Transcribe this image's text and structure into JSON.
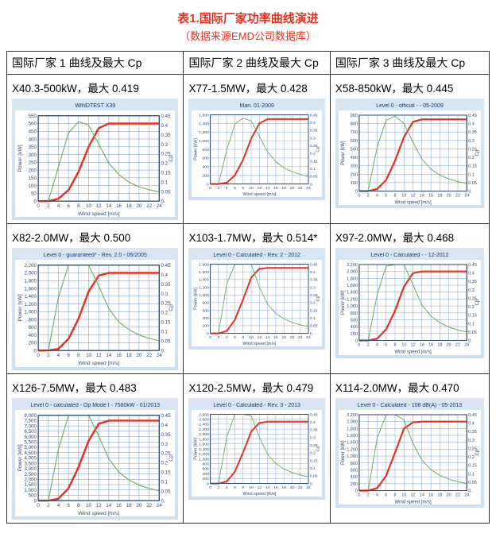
{
  "title": "表1.国际厂家功率曲线演进",
  "subtitle": "（数据来源EMD公司数据库）",
  "headers": [
    "国际厂家 1 曲线及最大 Cp",
    "国际厂家 2 曲线及最大 Cp",
    "国际厂家 3 曲线及最大 Cp"
  ],
  "shared": {
    "x": [
      0,
      2,
      4,
      6,
      8,
      10,
      12,
      14,
      16,
      18,
      20,
      22,
      24
    ],
    "xlabel": "Wind speed [m/s]",
    "ylabel": "Power [kW]",
    "y2ticks": [
      0,
      0.05,
      0.1,
      0.15,
      0.2,
      0.25,
      0.3,
      0.35,
      0.4,
      0.45
    ],
    "y2max": 0.45,
    "y2label": "Cp",
    "bg_plot": "#ffffff",
    "bg_panel_top": "#d9e6f2",
    "bg_panel_bot": "#cddff0",
    "grid_color": "#5b8abf",
    "power_color": "#e8301f",
    "cp_color": "#6fae5a",
    "text_color": "#2a4a7a",
    "title_fontsize": 7,
    "tick_fontsize": 5.5,
    "label_fontsize": 6,
    "power_linewidth": 2.2,
    "cp_linewidth": 1.0
  },
  "cells": [
    {
      "label": "X40.3-500kW，最大 0.419",
      "chart_title": "WINDTEST X39",
      "ymax": 550,
      "yticks": [
        0,
        50,
        100,
        150,
        200,
        250,
        300,
        350,
        400,
        450,
        500,
        550
      ],
      "power_y": [
        0,
        0,
        15,
        70,
        190,
        350,
        470,
        500,
        500,
        500,
        500,
        500,
        500
      ],
      "cp_y": [
        0,
        0,
        0.18,
        0.36,
        0.419,
        0.4,
        0.3,
        0.2,
        0.14,
        0.1,
        0.075,
        0.06,
        0.048
      ]
    },
    {
      "label": "X77-1.5MW，最大 0.428",
      "chart_title": "Man. 01-2009",
      "ymax": 1600,
      "yticks": [
        0,
        200,
        400,
        600,
        800,
        1000,
        1200,
        1400,
        1600
      ],
      "power_y": [
        0,
        0,
        30,
        200,
        560,
        1050,
        1400,
        1500,
        1500,
        1500,
        1500,
        1500,
        1500
      ],
      "cp_y": [
        0,
        0,
        0.22,
        0.39,
        0.428,
        0.41,
        0.31,
        0.21,
        0.145,
        0.105,
        0.08,
        0.062,
        0.05
      ]
    },
    {
      "label": "X58-850kW，最大 0.445",
      "chart_title": "Level 0 - official - - 05-2009",
      "ymax": 900,
      "yticks": [
        0,
        100,
        200,
        300,
        400,
        500,
        600,
        700,
        800,
        900
      ],
      "power_y": [
        0,
        0,
        25,
        130,
        360,
        640,
        820,
        850,
        850,
        850,
        850,
        850,
        850
      ],
      "cp_y": [
        0,
        0,
        0.26,
        0.42,
        0.445,
        0.4,
        0.29,
        0.19,
        0.13,
        0.095,
        0.072,
        0.056,
        0.045
      ]
    },
    {
      "label": "X82-2.0MW，最大 0.500",
      "chart_title": "Level 0 - guaranteed* - Rev. 2.0 - 06/2005",
      "ymax": 2200,
      "yticks": [
        0,
        200,
        400,
        600,
        800,
        1000,
        1200,
        1400,
        1600,
        1800,
        2000,
        2200
      ],
      "power_y": [
        0,
        0,
        40,
        300,
        820,
        1520,
        1930,
        2000,
        2000,
        2000,
        2000,
        2000,
        2000
      ],
      "cp_y": [
        0,
        0,
        0.28,
        0.46,
        0.5,
        0.47,
        0.34,
        0.22,
        0.15,
        0.11,
        0.082,
        0.064,
        0.051
      ]
    },
    {
      "label": "X103-1.7MW，最大 0.514*",
      "chart_title": "Level 0 - Calculated - Rev. 2 - 2012",
      "ymax": 1800,
      "yticks": [
        0,
        200,
        400,
        600,
        800,
        1000,
        1200,
        1400,
        1600,
        1800
      ],
      "power_y": [
        0,
        0,
        60,
        350,
        880,
        1450,
        1680,
        1700,
        1700,
        1700,
        1700,
        1700,
        1700
      ],
      "cp_y": [
        0,
        0,
        0.32,
        0.49,
        0.5,
        0.45,
        0.3,
        0.19,
        0.13,
        0.094,
        0.071,
        0.055,
        0.044
      ]
    },
    {
      "label": "X97-2.0MW，最大 0.468",
      "chart_title": "Level 0 - Calculated - - 12-2012",
      "ymax": 2200,
      "yticks": [
        0,
        200,
        400,
        600,
        800,
        1000,
        1200,
        1400,
        1600,
        1800,
        2000,
        2200
      ],
      "power_y": [
        0,
        0,
        50,
        320,
        860,
        1560,
        1950,
        2000,
        2000,
        2000,
        2000,
        2000,
        2000
      ],
      "cp_y": [
        0,
        0,
        0.27,
        0.44,
        0.468,
        0.45,
        0.33,
        0.21,
        0.145,
        0.105,
        0.079,
        0.062,
        0.05
      ]
    },
    {
      "label": "X126-7.5MW，最大 0.483",
      "chart_title": "Level 0 - calculated - Op Mode I - 7580kW - 01/2013",
      "ymax": 8000,
      "yticks": [
        0,
        500,
        1000,
        1500,
        2000,
        2500,
        3000,
        3500,
        4000,
        4500,
        5000,
        5500,
        6000,
        6500,
        7000,
        7500,
        8000
      ],
      "power_y": [
        0,
        0,
        180,
        1150,
        3150,
        5600,
        7200,
        7500,
        7500,
        7500,
        7500,
        7500,
        7500
      ],
      "cp_y": [
        0,
        0,
        0.27,
        0.45,
        0.483,
        0.46,
        0.34,
        0.22,
        0.15,
        0.109,
        0.082,
        0.064,
        0.051
      ]
    },
    {
      "label": "X120-2.5MW，最大 0.479",
      "chart_title": "Level 0 - Calculated - Rev. 3 - 2013",
      "ymax": 2800,
      "yticks": [
        0,
        200,
        400,
        600,
        800,
        1000,
        1200,
        1400,
        1600,
        1800,
        2000,
        2200,
        2400,
        2600,
        2800
      ],
      "power_y": [
        0,
        0,
        80,
        480,
        1250,
        2100,
        2450,
        2500,
        2500,
        2500,
        2500,
        2500,
        2500
      ],
      "cp_y": [
        0,
        0,
        0.3,
        0.46,
        0.479,
        0.44,
        0.3,
        0.19,
        0.13,
        0.094,
        0.071,
        0.055,
        0.044
      ]
    },
    {
      "label": "X114-2.0MW，最大 0.470",
      "chart_title": "Level 0 - Calculated - 108 dB(A) - 05-2013",
      "ymax": 2200,
      "yticks": [
        0,
        200,
        400,
        600,
        800,
        1000,
        1200,
        1400,
        1600,
        1800,
        2000,
        2200
      ],
      "power_y": [
        0,
        0,
        70,
        430,
        1100,
        1800,
        1980,
        2000,
        2000,
        2000,
        2000,
        2000,
        2000
      ],
      "cp_y": [
        0,
        0,
        0.31,
        0.46,
        0.47,
        0.42,
        0.28,
        0.18,
        0.125,
        0.09,
        0.068,
        0.053,
        0.042
      ]
    }
  ]
}
